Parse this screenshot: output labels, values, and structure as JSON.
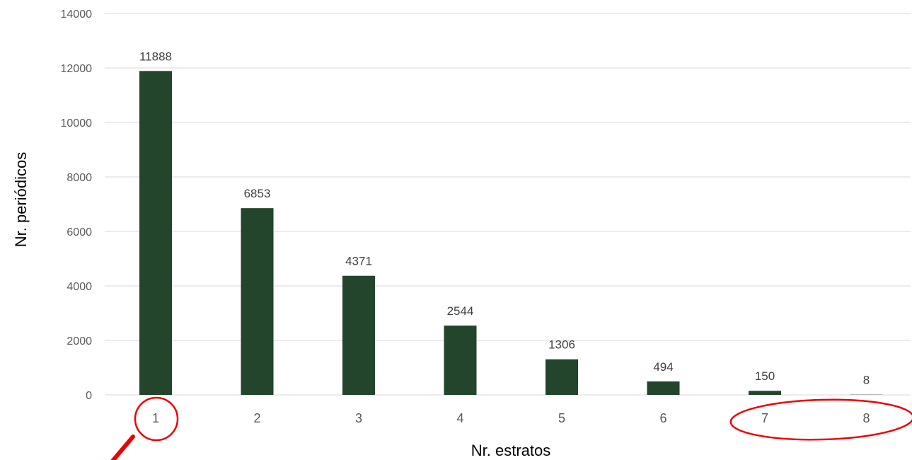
{
  "chart_data": {
    "type": "bar",
    "categories": [
      "1",
      "2",
      "3",
      "4",
      "5",
      "6",
      "7",
      "8"
    ],
    "values": [
      11888,
      6853,
      4371,
      2544,
      1306,
      494,
      150,
      8
    ],
    "title": "",
    "xlabel": "Nr. estratos",
    "ylabel": "Nr. periódicos",
    "ylim": [
      0,
      14000
    ],
    "yticks": [
      0,
      2000,
      4000,
      6000,
      8000,
      10000,
      12000,
      14000
    ],
    "grid": true,
    "data_labels": true,
    "legend": "none"
  },
  "colors": {
    "bar": "#22452b",
    "grid": "#d9d9d9",
    "annotation": "#ee0000"
  },
  "annotations": [
    {
      "type": "circle",
      "target_category": "1",
      "with_arrow": true
    },
    {
      "type": "ellipse",
      "target_categories": [
        "7",
        "8"
      ]
    }
  ]
}
